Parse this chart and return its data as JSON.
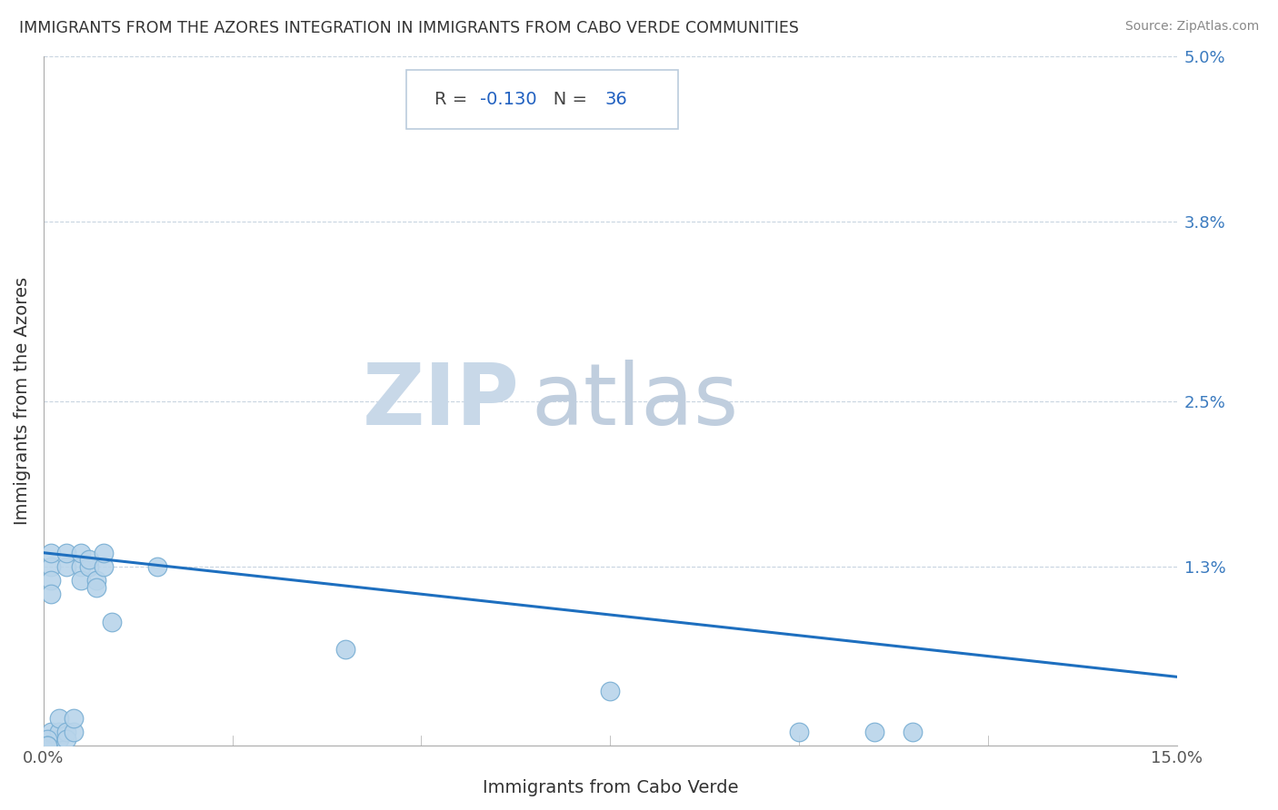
{
  "title": "IMMIGRANTS FROM THE AZORES INTEGRATION IN IMMIGRANTS FROM CABO VERDE COMMUNITIES",
  "source": "Source: ZipAtlas.com",
  "xlabel": "Immigrants from Cabo Verde",
  "ylabel": "Immigrants from the Azores",
  "xlim": [
    0.0,
    0.15
  ],
  "ylim": [
    0.0,
    0.05
  ],
  "xtick_labels": [
    "0.0%",
    "15.0%"
  ],
  "xtick_values": [
    0.0,
    0.15
  ],
  "ytick_labels": [
    "5.0%",
    "3.8%",
    "2.5%",
    "1.3%"
  ],
  "ytick_values": [
    0.05,
    0.038,
    0.025,
    0.013
  ],
  "R": "-0.130",
  "N": "36",
  "scatter_color": "#b8d4ea",
  "scatter_edge_color": "#7aafd4",
  "line_color": "#1e6fbf",
  "background_color": "#ffffff",
  "grid_color": "#c8d4e0",
  "watermark_color_zip": "#c8d8e8",
  "watermark_color_atlas": "#c0cede",
  "scatter_x": [
    0.001,
    0.001,
    0.001,
    0.002,
    0.002,
    0.002,
    0.003,
    0.003,
    0.004,
    0.004,
    0.0005,
    0.0005,
    0.0005,
    0.0005,
    0.001,
    0.001,
    0.001,
    0.001,
    0.003,
    0.003,
    0.005,
    0.005,
    0.005,
    0.006,
    0.006,
    0.007,
    0.007,
    0.008,
    0.008,
    0.009,
    0.015,
    0.04,
    0.075,
    0.1,
    0.11,
    0.115
  ],
  "scatter_y": [
    0.0005,
    0.0005,
    0.001,
    0.0005,
    0.001,
    0.002,
    0.001,
    0.0005,
    0.001,
    0.002,
    0.0,
    0.0005,
    0.0,
    0.0,
    0.013,
    0.014,
    0.012,
    0.011,
    0.013,
    0.014,
    0.013,
    0.014,
    0.012,
    0.013,
    0.0135,
    0.012,
    0.0115,
    0.013,
    0.014,
    0.009,
    0.013,
    0.007,
    0.004,
    0.001,
    0.001,
    0.001
  ],
  "line_x": [
    0.0,
    0.15
  ],
  "line_y": [
    0.014,
    0.005
  ]
}
